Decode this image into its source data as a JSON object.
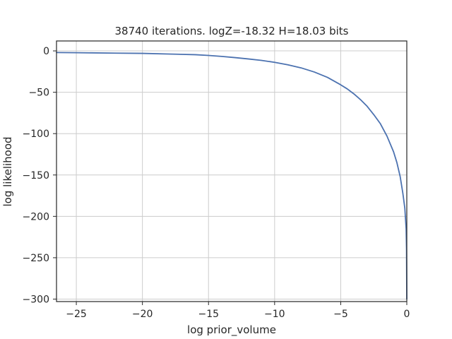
{
  "chart_data": {
    "type": "line",
    "title": "38740 iterations. logZ=-18.32 H=18.03 bits",
    "xlabel": "log prior_volume",
    "ylabel": "log likelihood",
    "xlim": [
      -26.5,
      0
    ],
    "ylim": [
      -303,
      12
    ],
    "grid": true,
    "xticks": [
      -25,
      -20,
      -15,
      -10,
      -5,
      0
    ],
    "yticks": [
      0,
      -50,
      -100,
      -150,
      -200,
      -250,
      -300
    ],
    "xtick_labels": [
      "−25",
      "−20",
      "−15",
      "−10",
      "−5",
      "0"
    ],
    "ytick_labels": [
      "0",
      "−50",
      "−100",
      "−150",
      "−200",
      "−250",
      "−300"
    ],
    "series": [
      {
        "color": "#4c72b0",
        "x": [
          -26.5,
          -25,
          -22,
          -20,
          -18,
          -16,
          -15,
          -14,
          -13,
          -12,
          -11,
          -10,
          -9,
          -8,
          -7,
          -6,
          -5,
          -4.5,
          -4,
          -3.5,
          -3,
          -2.5,
          -2,
          -1.5,
          -1,
          -0.75,
          -0.5,
          -0.3,
          -0.15,
          -0.05,
          -0.02,
          0
        ],
        "y": [
          -2,
          -2.2,
          -2.7,
          -3,
          -3.8,
          -4.6,
          -5.5,
          -6.7,
          -8.1,
          -9.7,
          -11.5,
          -13.8,
          -16.8,
          -20.5,
          -25.5,
          -32,
          -41,
          -46,
          -52,
          -59,
          -67,
          -77,
          -88,
          -103,
          -122,
          -135,
          -152,
          -172,
          -190,
          -215,
          -240,
          -300
        ]
      }
    ]
  }
}
